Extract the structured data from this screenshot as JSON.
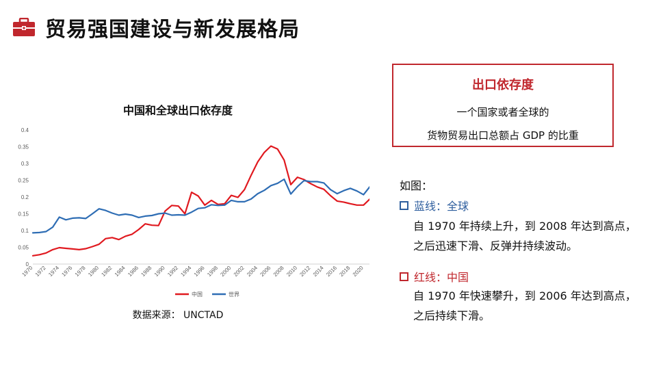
{
  "header": {
    "title": "贸易强国建设与新发展格局",
    "icon": "briefcase-icon"
  },
  "chart": {
    "title": "中国和全球出口依存度",
    "source": "数据来源： UNCTAD"
  },
  "chart_data": {
    "type": "line",
    "title": "中国和全球出口依存度",
    "xlabel": "",
    "ylabel": "",
    "ylim": [
      0,
      0.4
    ],
    "yticks": [
      "0",
      "0.05",
      "0.1",
      "0.15",
      "0.2",
      "0.25",
      "0.3",
      "0.35",
      "0.4"
    ],
    "xticks": [
      "1970",
      "1972",
      "1974",
      "1976",
      "1978",
      "1980",
      "1982",
      "1984",
      "1986",
      "1988",
      "1990",
      "1992",
      "1994",
      "1996",
      "1998",
      "2000",
      "2002",
      "2004",
      "2006",
      "2008",
      "2010",
      "2012",
      "2014",
      "2016",
      "2018",
      "2020"
    ],
    "x": [
      1970,
      1971,
      1972,
      1973,
      1974,
      1975,
      1976,
      1977,
      1978,
      1979,
      1980,
      1981,
      1982,
      1983,
      1984,
      1985,
      1986,
      1987,
      1988,
      1989,
      1990,
      1991,
      1992,
      1993,
      1994,
      1995,
      1996,
      1997,
      1998,
      1999,
      2000,
      2001,
      2002,
      2003,
      2004,
      2005,
      2006,
      2007,
      2008,
      2009,
      2010,
      2011,
      2012,
      2013,
      2014,
      2015,
      2016,
      2017,
      2018,
      2019,
      2020,
      2021
    ],
    "grid": false,
    "legend": "bottom",
    "series": [
      {
        "name": "中国",
        "color": "#e0191f",
        "values": [
          0.025,
          0.028,
          0.033,
          0.043,
          0.049,
          0.047,
          0.045,
          0.043,
          0.046,
          0.052,
          0.059,
          0.076,
          0.079,
          0.073,
          0.083,
          0.089,
          0.103,
          0.12,
          0.116,
          0.115,
          0.158,
          0.175,
          0.173,
          0.15,
          0.214,
          0.203,
          0.176,
          0.19,
          0.178,
          0.18,
          0.205,
          0.199,
          0.222,
          0.265,
          0.305,
          0.333,
          0.352,
          0.343,
          0.31,
          0.237,
          0.259,
          0.252,
          0.24,
          0.23,
          0.223,
          0.204,
          0.188,
          0.185,
          0.18,
          0.176,
          0.176,
          0.195
        ]
      },
      {
        "name": "世界",
        "color": "#2e6db4",
        "values": [
          0.093,
          0.094,
          0.097,
          0.11,
          0.14,
          0.132,
          0.137,
          0.138,
          0.136,
          0.15,
          0.165,
          0.16,
          0.152,
          0.146,
          0.149,
          0.146,
          0.139,
          0.143,
          0.145,
          0.15,
          0.152,
          0.146,
          0.147,
          0.146,
          0.155,
          0.166,
          0.168,
          0.177,
          0.175,
          0.176,
          0.19,
          0.186,
          0.186,
          0.194,
          0.21,
          0.22,
          0.234,
          0.241,
          0.253,
          0.209,
          0.231,
          0.249,
          0.246,
          0.246,
          0.242,
          0.222,
          0.21,
          0.219,
          0.226,
          0.218,
          0.207,
          0.232
        ]
      }
    ]
  },
  "definition": {
    "title": "出口依存度",
    "line1": "一个国家或者全球的",
    "line2": "货物贸易出口总额占 GDP 的比重"
  },
  "notes": {
    "intro": "如图：",
    "blue_label": "蓝线：全球",
    "blue_desc": "自 1970 年持续上升，到 2008 年达到高点，之后迅速下滑、反弹并持续波动。",
    "red_label": "红线：中国",
    "red_desc": "自 1970 年快速攀升，到 2006 年达到高点，之后持续下滑。",
    "blue_color": "#2e5e9e",
    "red_color": "#c0272d"
  }
}
